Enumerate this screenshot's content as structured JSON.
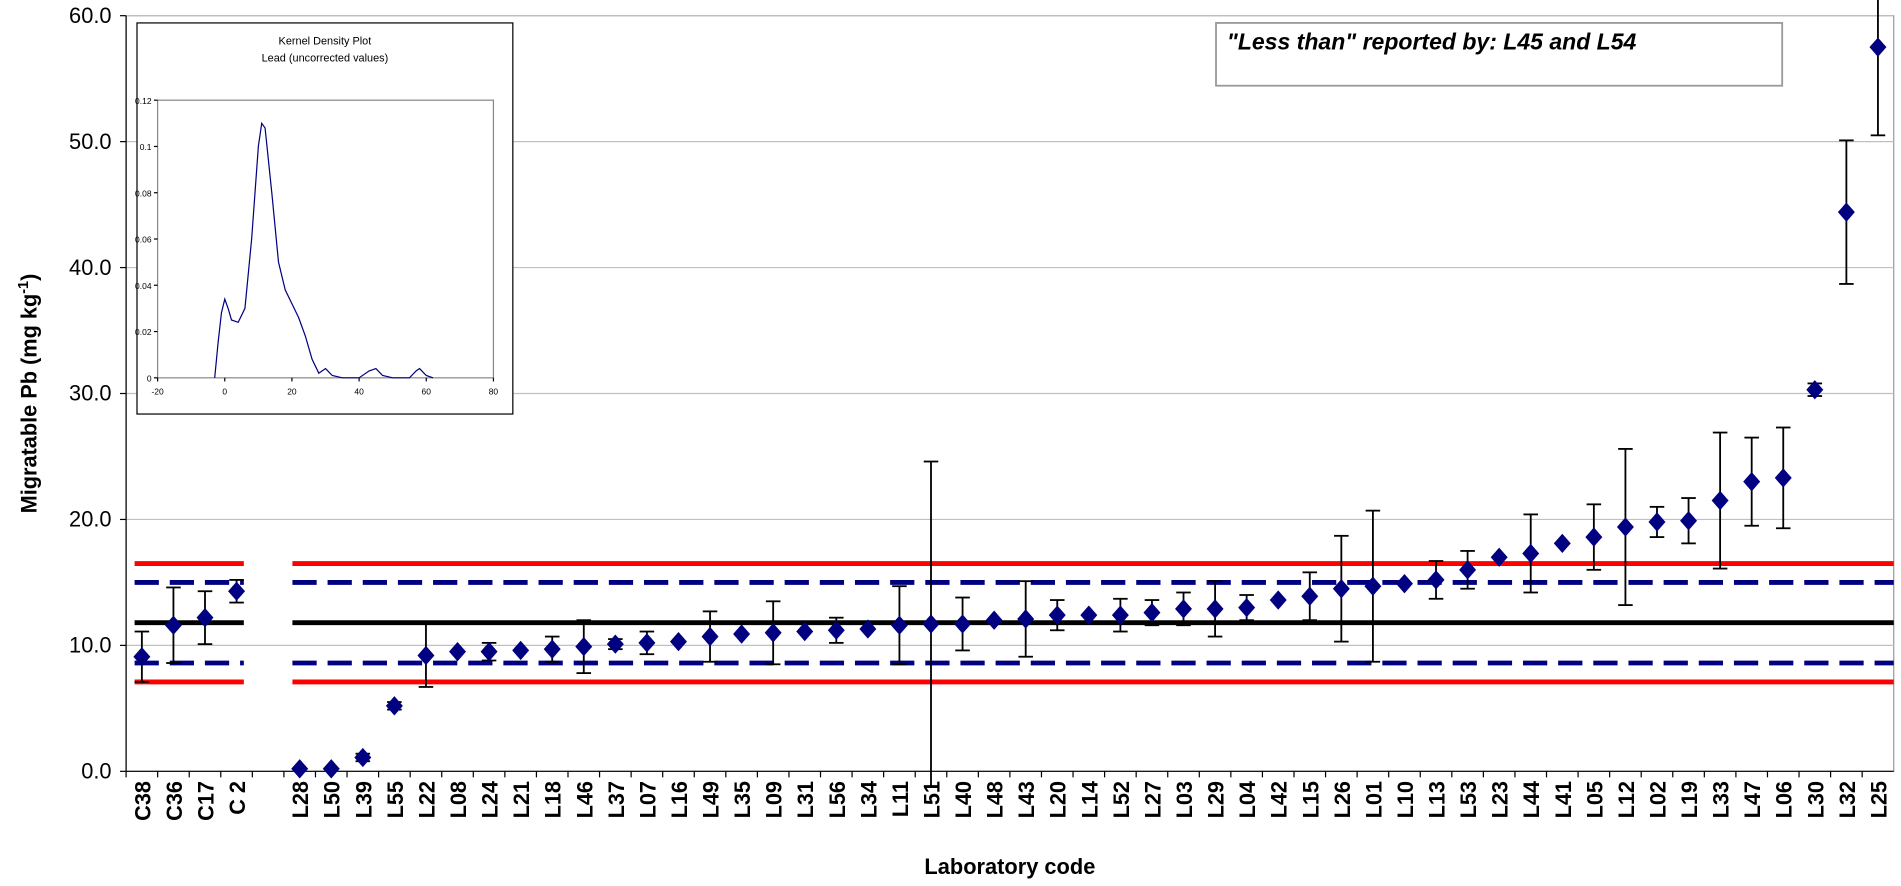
{
  "chart_data": [
    {
      "type": "errorbar",
      "x_label": "Laboratory code",
      "y_label": "Migratable Pb (mg kg",
      "y_label_sup": "-1",
      "y_label_end": ")",
      "annotation": "\"Less than\" reported by: L45 and L54",
      "categories": [
        "C38",
        "C36",
        "C17",
        "C 2",
        null,
        "L28",
        "L50",
        "L39",
        "L55",
        "L22",
        "L08",
        "L24",
        "L21",
        "L18",
        "L46",
        "L37",
        "L07",
        "L16",
        "L49",
        "L35",
        "L09",
        "L31",
        "L56",
        "L34",
        "L11",
        "L51",
        "L40",
        "L48",
        "L43",
        "L20",
        "L14",
        "L52",
        "L27",
        "L03",
        "L29",
        "L04",
        "L42",
        "L15",
        "L26",
        "L01",
        "L10",
        "L13",
        "L53",
        "L23",
        "L44",
        "L41",
        "L05",
        "L12",
        "L02",
        "L19",
        "L33",
        "L47",
        "L06",
        "L30",
        "L32",
        "L25"
      ],
      "series": [
        {
          "color": "#000080",
          "values": [
            9.1,
            11.6,
            12.2,
            14.3,
            null,
            0.2,
            0.2,
            1.1,
            5.2,
            9.2,
            9.5,
            9.5,
            9.6,
            9.7,
            9.9,
            10.1,
            10.2,
            10.3,
            10.7,
            10.9,
            11.0,
            11.1,
            11.2,
            11.3,
            11.6,
            11.7,
            11.7,
            12.0,
            12.1,
            12.4,
            12.4,
            12.4,
            12.6,
            12.9,
            12.9,
            13.0,
            13.6,
            13.9,
            14.5,
            14.7,
            14.9,
            15.2,
            16.0,
            17.0,
            17.3,
            18.1,
            18.6,
            19.4,
            19.8,
            19.9,
            21.5,
            23.0,
            23.3,
            30.3,
            44.4,
            57.5
          ],
          "errors": [
            2.0,
            3.0,
            2.1,
            0.9,
            null,
            null,
            null,
            0.3,
            0.3,
            2.5,
            null,
            0.7,
            null,
            1.0,
            2.1,
            0.4,
            0.9,
            null,
            2.0,
            null,
            2.5,
            null,
            1.0,
            null,
            3.1,
            12.9,
            2.1,
            null,
            3.0,
            1.2,
            null,
            1.3,
            1.0,
            1.3,
            2.2,
            1.0,
            null,
            1.9,
            4.2,
            6.0,
            null,
            1.5,
            1.5,
            null,
            3.1,
            null,
            2.6,
            6.2,
            1.2,
            1.8,
            5.4,
            3.5,
            4.0,
            0.5,
            5.7,
            7.0
          ]
        }
      ],
      "reference_lines": [
        {
          "value": 16.5,
          "color": "#ff0000",
          "dashed": false
        },
        {
          "value": 15.0,
          "color": "#000080",
          "dashed": true
        },
        {
          "value": 11.8,
          "color": "#000000",
          "dashed": false
        },
        {
          "value": 8.6,
          "color": "#000080",
          "dashed": true
        },
        {
          "value": 7.1,
          "color": "#ff0000",
          "dashed": false
        }
      ],
      "ylim": [
        0,
        60
      ],
      "yticks": [
        {
          "value": 0,
          "label": "0.0"
        },
        {
          "value": 10,
          "label": "10.0"
        },
        {
          "value": 20,
          "label": "20.0"
        },
        {
          "value": 30,
          "label": "30.0"
        },
        {
          "value": 40,
          "label": "40.0"
        },
        {
          "value": 50,
          "label": "50.0"
        },
        {
          "value": 60,
          "label": "60.0"
        }
      ],
      "grid": true
    },
    {
      "type": "line",
      "title": "Kernel Density Plot",
      "subtitle": "Lead (uncorrected values)",
      "x": [
        -3,
        -2,
        -1,
        0,
        1,
        2,
        4,
        6,
        8,
        10,
        11,
        12,
        14,
        16,
        18,
        20,
        22,
        24,
        26,
        28,
        30,
        32,
        35,
        40,
        43,
        45,
        47,
        50,
        55,
        57,
        58,
        60,
        62
      ],
      "series": [
        {
          "color": "#000080",
          "values": [
            0.0,
            0.015,
            0.028,
            0.034,
            0.03,
            0.025,
            0.024,
            0.03,
            0.06,
            0.1,
            0.11,
            0.108,
            0.08,
            0.05,
            0.038,
            0.032,
            0.026,
            0.018,
            0.008,
            0.002,
            0.004,
            0.001,
            0.0,
            0.0,
            0.003,
            0.004,
            0.001,
            0.0,
            0.0,
            0.003,
            0.004,
            0.001,
            0.0
          ]
        }
      ],
      "xlim": [
        -20,
        80
      ],
      "xticks": [
        -20,
        0,
        20,
        40,
        60,
        80
      ],
      "ylim": [
        0,
        0.12
      ],
      "yticks": [
        0,
        0.02,
        0.04,
        0.06,
        0.08,
        0.1,
        0.12
      ]
    }
  ]
}
